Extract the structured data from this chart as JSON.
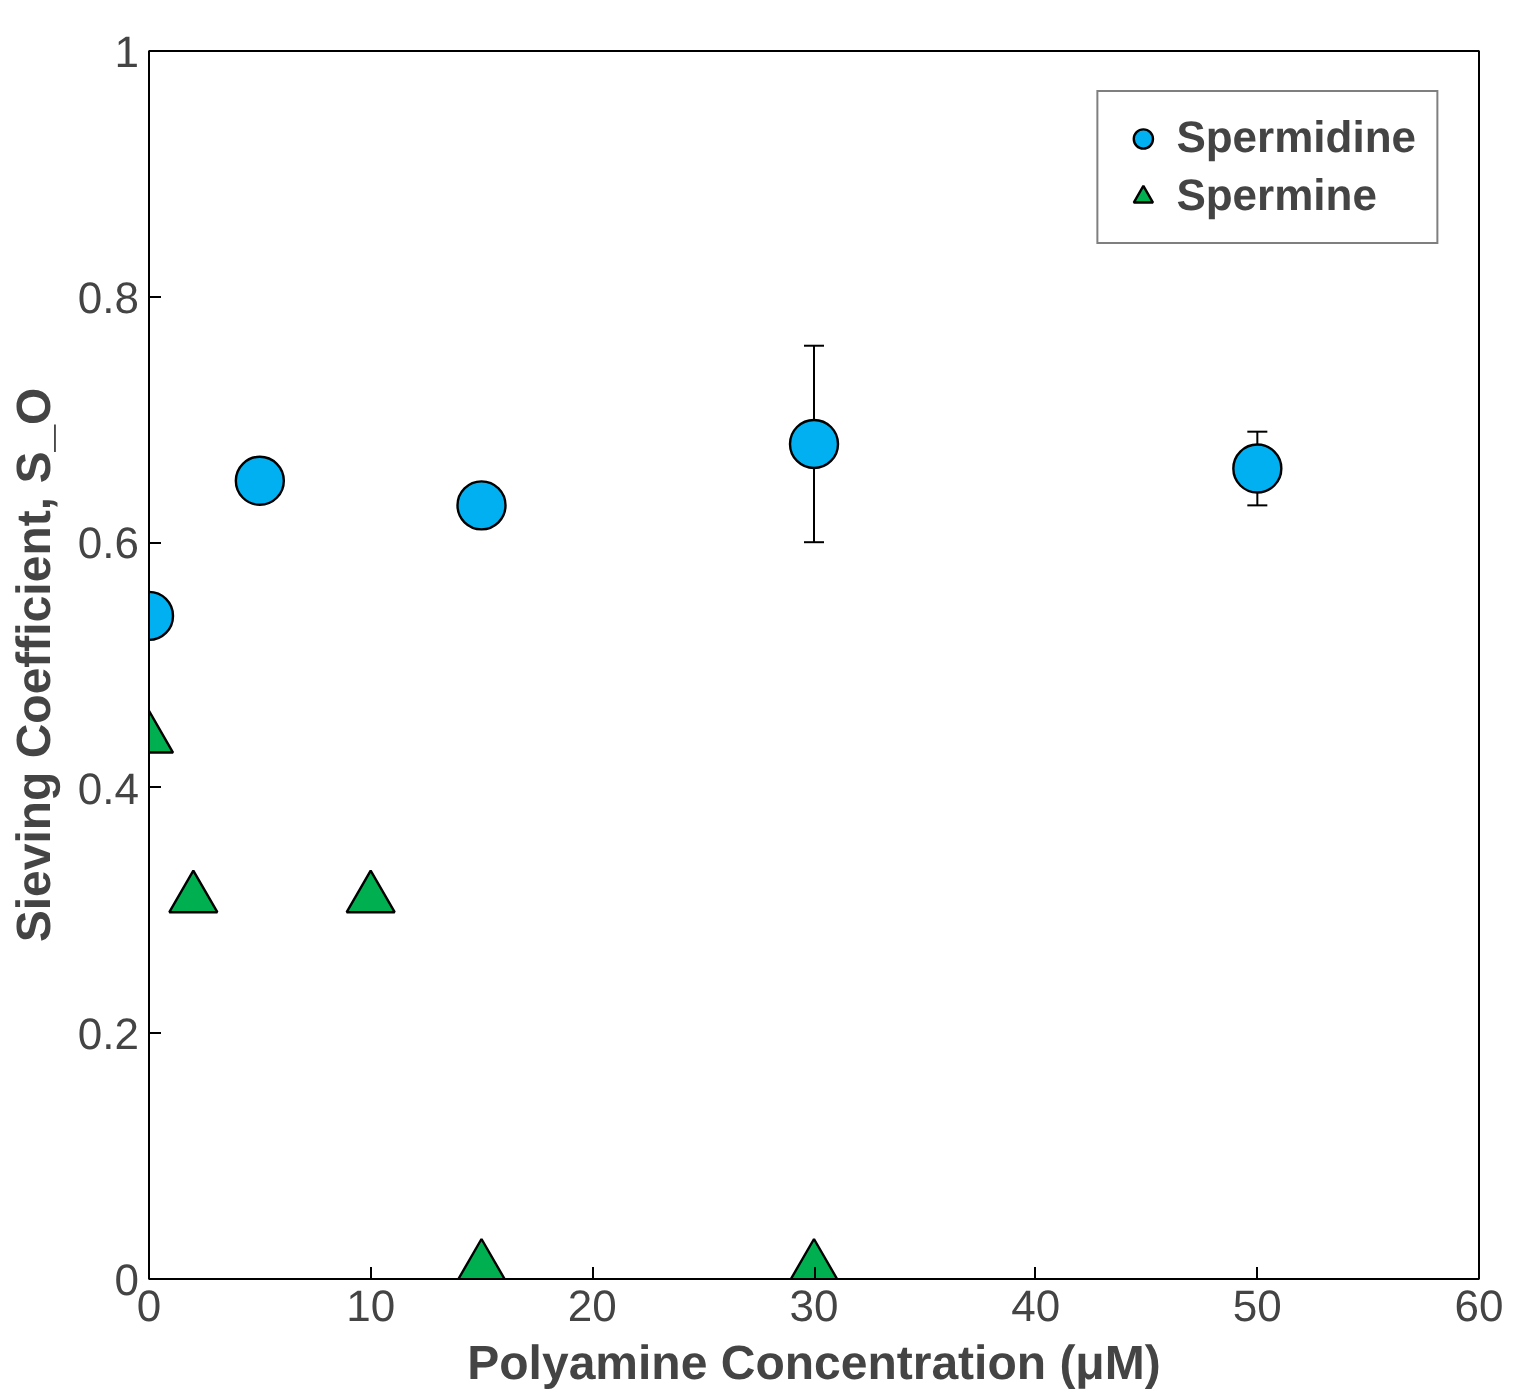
{
  "chart_data": {
    "type": "scatter",
    "xlabel": "Polyamine Concentration (μM)",
    "ylabel": "Sieving Coefficient, S_O",
    "xlim": [
      0,
      60
    ],
    "ylim": [
      0,
      1
    ],
    "xticks": [
      0,
      10,
      20,
      30,
      40,
      50,
      60
    ],
    "yticks": [
      0,
      0.2,
      0.4,
      0.6,
      0.8,
      1
    ],
    "grid": false,
    "legend": "top right",
    "series": [
      {
        "name": "Spermidine",
        "color": "#00b0f0",
        "marker": "circle",
        "x": [
          0,
          5,
          15,
          30,
          50
        ],
        "values": [
          0.54,
          0.65,
          0.63,
          0.68,
          0.66
        ],
        "errors": [
          null,
          null,
          null,
          [
            0.6,
            0.76
          ],
          [
            0.63,
            0.69
          ]
        ]
      },
      {
        "name": "Spermine",
        "color": "#00b050",
        "marker": "triangle",
        "x": [
          0,
          2,
          10,
          15,
          30
        ],
        "values": [
          0.44,
          0.31,
          0.31,
          0.01,
          0.01
        ]
      }
    ]
  }
}
